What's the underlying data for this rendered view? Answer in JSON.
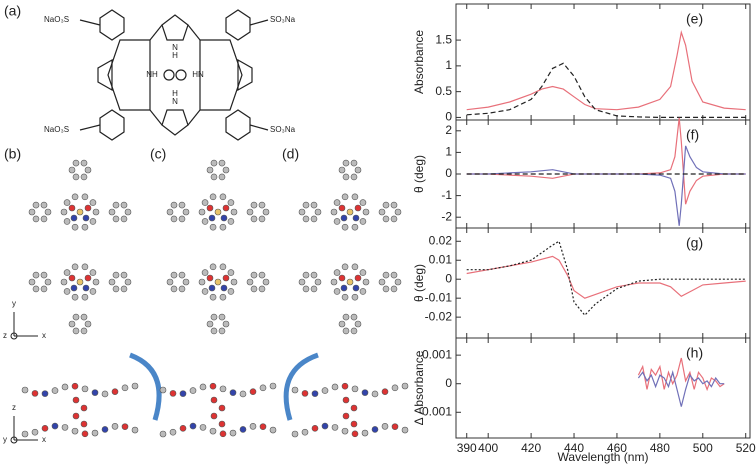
{
  "chart_data": [
    {
      "type": "line",
      "panel": "(e)",
      "ylabel": "Absorbance",
      "xlim": [
        385,
        522
      ],
      "xticks": [
        390,
        400,
        420,
        440,
        460,
        480,
        500,
        520
      ],
      "ylim": [
        -0.05,
        2.2
      ],
      "yticks": [
        0,
        0.5,
        1,
        1.5
      ],
      "x": [
        390,
        400,
        410,
        420,
        425,
        430,
        435,
        440,
        445,
        450,
        460,
        470,
        480,
        485,
        488,
        490,
        492,
        495,
        500,
        510,
        520
      ],
      "series": [
        {
          "color": "#e8707a",
          "linestyle": "solid",
          "values": [
            0.15,
            0.2,
            0.3,
            0.45,
            0.55,
            0.6,
            0.55,
            0.4,
            0.25,
            0.17,
            0.15,
            0.2,
            0.35,
            0.6,
            1.2,
            1.65,
            1.4,
            0.7,
            0.3,
            0.18,
            0.15
          ]
        },
        {
          "color": "#222222",
          "linestyle": "dashed",
          "values": [
            0.05,
            0.08,
            0.15,
            0.35,
            0.6,
            0.95,
            1.05,
            0.8,
            0.4,
            0.15,
            0.03,
            0.01,
            0,
            0,
            0,
            0,
            0,
            0,
            0,
            0,
            0
          ]
        }
      ]
    },
    {
      "type": "line",
      "panel": "(f)",
      "ylabel": "θ (deg)",
      "xlim": [
        385,
        522
      ],
      "xticks": [
        390,
        400,
        420,
        440,
        460,
        480,
        500,
        520
      ],
      "ylim": [
        -2.5,
        2.5
      ],
      "yticks": [
        -2,
        -1,
        0,
        1,
        2
      ],
      "x": [
        390,
        400,
        410,
        420,
        430,
        435,
        440,
        450,
        460,
        470,
        480,
        485,
        487,
        489,
        490,
        492,
        494,
        497,
        500,
        510,
        520
      ],
      "series": [
        {
          "color": "#e8707a",
          "linestyle": "solid",
          "values": [
            0,
            0,
            -0.05,
            -0.1,
            -0.2,
            -0.1,
            0,
            0,
            0,
            0,
            0.05,
            0.2,
            0.8,
            2.6,
            1.5,
            -1.4,
            -0.8,
            -0.3,
            -0.1,
            0,
            0
          ]
        },
        {
          "color": "#7070b8",
          "linestyle": "solid",
          "values": [
            0,
            0,
            0.05,
            0.1,
            0.2,
            0.1,
            0,
            0,
            0,
            0,
            -0.05,
            -0.2,
            -0.8,
            -2.4,
            -1.4,
            1.3,
            0.8,
            0.3,
            0.1,
            0,
            0
          ]
        },
        {
          "color": "#222222",
          "linestyle": "dashed",
          "values": [
            0,
            0,
            0,
            0,
            0,
            0,
            0,
            0,
            0,
            0,
            0,
            0,
            0,
            0,
            0,
            0,
            0,
            0,
            0,
            0,
            0
          ]
        }
      ]
    },
    {
      "type": "line",
      "panel": "(g)",
      "ylabel": "θ (deg)",
      "xlim": [
        385,
        522
      ],
      "xticks": [
        390,
        400,
        420,
        440,
        460,
        480,
        500,
        520
      ],
      "ylim": [
        -0.031,
        0.027
      ],
      "yticks": [
        -0.02,
        -0.01,
        0,
        0.01,
        0.02
      ],
      "x": [
        390,
        400,
        410,
        420,
        430,
        433,
        437,
        440,
        445,
        450,
        460,
        470,
        480,
        485,
        490,
        495,
        500,
        510,
        520
      ],
      "series": [
        {
          "color": "#e8707a",
          "linestyle": "solid",
          "values": [
            0.003,
            0.005,
            0.007,
            0.009,
            0.012,
            0.01,
            0.002,
            -0.006,
            -0.01,
            -0.008,
            -0.004,
            -0.002,
            -0.002,
            -0.004,
            -0.009,
            -0.006,
            -0.003,
            -0.002,
            -0.001
          ]
        },
        {
          "color": "#222222",
          "linestyle": "dotted",
          "values": [
            0.005,
            0.005,
            0.007,
            0.01,
            0.018,
            0.02,
            0.005,
            -0.012,
            -0.019,
            -0.013,
            -0.005,
            -0.001,
            0,
            0,
            0,
            0,
            0,
            0,
            0
          ]
        }
      ]
    },
    {
      "type": "line",
      "panel": "(h)",
      "ylabel": "Δ Absorbance",
      "xlabel": "Wavelength (nm)",
      "show_xtick_labels": true,
      "xlim": [
        385,
        522
      ],
      "xticks": [
        390,
        400,
        420,
        440,
        460,
        480,
        500,
        520
      ],
      "ylim": [
        -0.0019,
        0.0016
      ],
      "yticks": [
        -0.001,
        0,
        0.001
      ],
      "x": [
        470,
        472,
        474,
        476,
        478,
        480,
        482,
        484,
        486,
        488,
        490,
        492,
        494,
        496,
        498,
        500,
        502,
        504,
        506,
        508,
        510
      ],
      "series": [
        {
          "color": "#e8707a",
          "linestyle": "solid",
          "values": [
            0.0003,
            0.0006,
            -0.0002,
            0.0005,
            0.0003,
            0.0006,
            -0.0002,
            0.0004,
            0,
            0.0003,
            0.0009,
            0.0001,
            0.0004,
            -0.0002,
            0.0004,
            0.0002,
            -0.0002,
            0.0002,
            0.0001,
            -0.0001,
            0
          ]
        },
        {
          "color": "#7070b8",
          "linestyle": "solid",
          "values": [
            0.0002,
            0.0004,
            0.0001,
            0.0003,
            -0.0001,
            0.0003,
            0.0002,
            -0.0001,
            0.0004,
            -0.0002,
            -0.0008,
            -0.0002,
            0.0003,
            0.0001,
            0.0002,
            0,
            0.0001,
            -0.0001,
            0.0002,
            0,
            0
          ]
        }
      ]
    }
  ],
  "figure": {
    "panels": [
      "(a)",
      "(b)",
      "(c)",
      "(d)"
    ],
    "substituents": [
      "NaO₃S",
      "SO₃Na",
      "NaO₃S",
      "SO₃Na"
    ],
    "core": [
      "NH",
      "HN",
      "H",
      "N",
      "N",
      "H"
    ],
    "axes_top": [
      "y",
      "z",
      "x"
    ],
    "axes_bottom": [
      "z",
      "y",
      "x"
    ]
  }
}
